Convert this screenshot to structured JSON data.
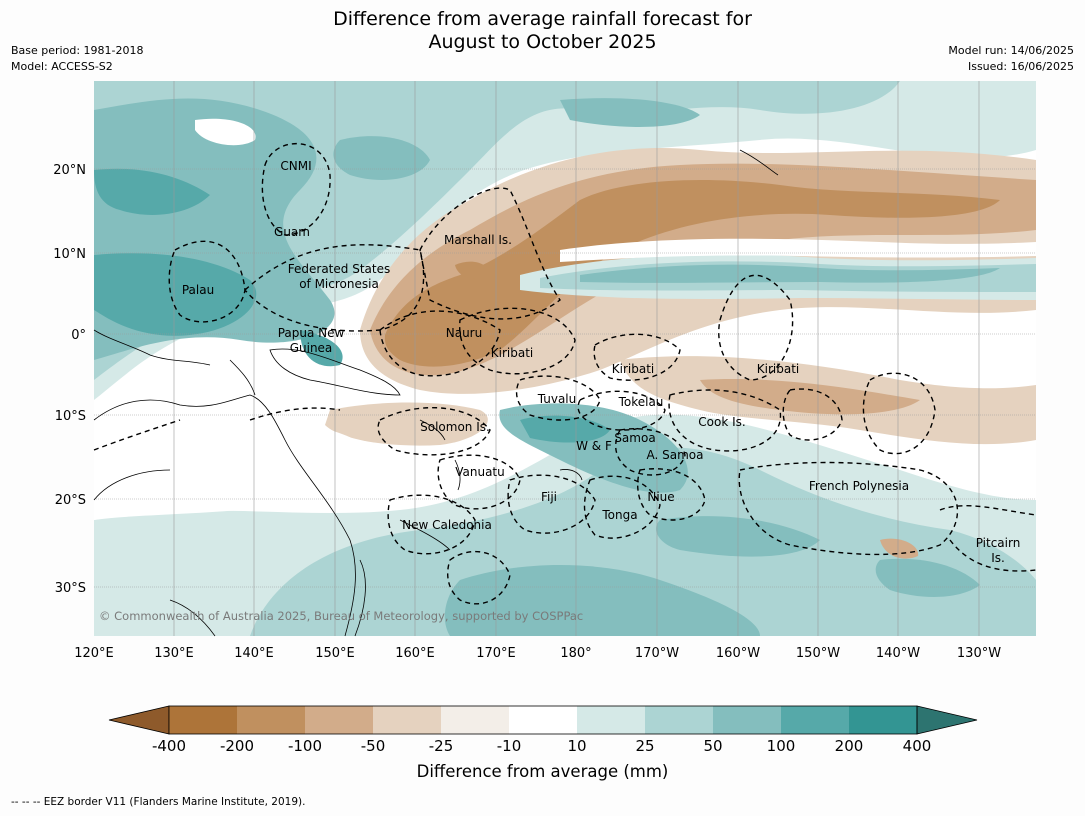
{
  "title": {
    "line1": "Difference from average rainfall forecast for",
    "line2": "August to October 2025"
  },
  "meta": {
    "base_period": "Base period: 1981-2018",
    "model": "Model: ACCESS-S2",
    "model_run": "Model run: 14/06/2025",
    "issued": "Issued: 16/06/2025"
  },
  "map": {
    "lat_ticks": [
      "20°N",
      "10°N",
      "0°",
      "10°S",
      "20°S",
      "30°S"
    ],
    "lon_ticks": [
      "120°E",
      "130°E",
      "140°E",
      "150°E",
      "160°E",
      "170°E",
      "180°",
      "170°W",
      "160°W",
      "150°W",
      "140°W",
      "130°W"
    ],
    "regions": [
      {
        "id": "cnmi",
        "lines": [
          "CNMI"
        ]
      },
      {
        "id": "guam",
        "lines": [
          "Guam"
        ]
      },
      {
        "id": "marshall",
        "lines": [
          "Marshall Is."
        ]
      },
      {
        "id": "fsm",
        "lines": [
          "Federated States",
          "of Micronesia"
        ]
      },
      {
        "id": "palau",
        "lines": [
          "Palau"
        ]
      },
      {
        "id": "png",
        "lines": [
          "Papua New",
          "Guinea"
        ]
      },
      {
        "id": "nauru",
        "lines": [
          "Nauru"
        ]
      },
      {
        "id": "kiribati-w",
        "lines": [
          "Kiribati"
        ]
      },
      {
        "id": "kiribati-c",
        "lines": [
          "Kiribati"
        ]
      },
      {
        "id": "kiribati-e",
        "lines": [
          "Kiribati"
        ]
      },
      {
        "id": "tuvalu",
        "lines": [
          "Tuvalu"
        ]
      },
      {
        "id": "tokelau",
        "lines": [
          "Tokelau"
        ]
      },
      {
        "id": "cook",
        "lines": [
          "Cook Is."
        ]
      },
      {
        "id": "solomon",
        "lines": [
          "Solomon Is."
        ]
      },
      {
        "id": "samoa",
        "lines": [
          "Samoa"
        ]
      },
      {
        "id": "wf",
        "lines": [
          "W & F"
        ]
      },
      {
        "id": "asamoa",
        "lines": [
          "A. Samoa"
        ]
      },
      {
        "id": "vanuatu",
        "lines": [
          "Vanuatu"
        ]
      },
      {
        "id": "fiji",
        "lines": [
          "Fiji"
        ]
      },
      {
        "id": "niue",
        "lines": [
          "Niue"
        ]
      },
      {
        "id": "tonga",
        "lines": [
          "Tonga"
        ]
      },
      {
        "id": "frpoly",
        "lines": [
          "French Polynesia"
        ]
      },
      {
        "id": "newcal",
        "lines": [
          "New Caledonia"
        ]
      },
      {
        "id": "pitcairn",
        "lines": [
          "Pitcairn",
          "Is."
        ]
      }
    ],
    "copyright": "© Commonwealth of Australia 2025, Bureau of Meteorology, supported by COSPPac"
  },
  "legend": {
    "title": "Difference from average (mm)",
    "tick_labels": [
      "-400",
      "-200",
      "-100",
      "-50",
      "-25",
      "-10",
      "10",
      "25",
      "50",
      "100",
      "200",
      "400"
    ],
    "colors": {
      "below_min": "#8e5a2b",
      "bins": [
        "#ad7439",
        "#c0905f",
        "#d2ac8a",
        "#e5d2bf",
        "#f3eee8",
        "#ffffff",
        "#d5e9e7",
        "#acd4d3",
        "#84bebe",
        "#56a9a9",
        "#339593"
      ],
      "above_max": "#2d7470"
    }
  },
  "footer": "--  --  -- EEZ border V11 (Flanders Marine Institute, 2019)."
}
